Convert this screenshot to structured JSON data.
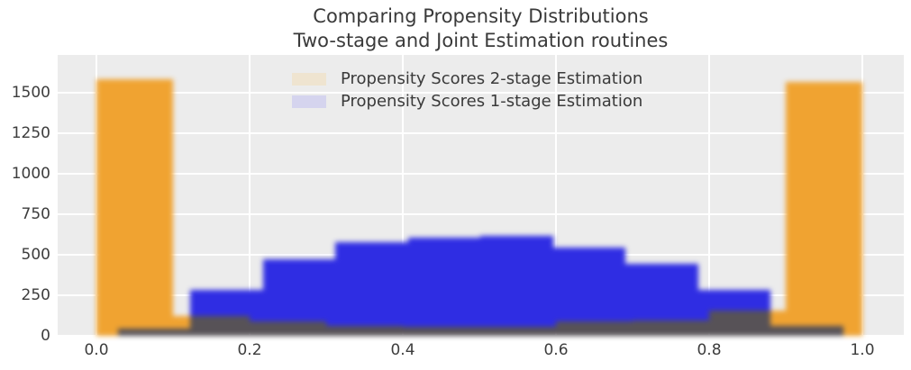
{
  "title": {
    "line1": "Comparing Propensity Distributions",
    "line2": "Two-stage and Joint Estimation routines"
  },
  "chart_data": {
    "type": "histogram",
    "title": "Comparing Propensity Distributions\nTwo-stage and Joint Estimation routines",
    "xlabel": "",
    "ylabel": "",
    "xlim": [
      -0.05,
      1.054
    ],
    "ylim": [
      0,
      1735
    ],
    "grid": true,
    "background_color": "#ececec",
    "grid_color": "#ffffff",
    "overlap_color": "#575257",
    "legend_position": "upper center",
    "x_ticks": [
      0.0,
      0.2,
      0.4,
      0.6,
      0.8,
      1.0
    ],
    "x_tick_labels": [
      "0.0",
      "0.2",
      "0.4",
      "0.6",
      "0.8",
      "1.0"
    ],
    "y_ticks": [
      0,
      250,
      500,
      750,
      1000,
      1250,
      1500
    ],
    "y_tick_labels": [
      "0",
      "250",
      "500",
      "750",
      "1000",
      "1250",
      "1500"
    ],
    "series": [
      {
        "name": "Propensity Scores 2-stage Estimation",
        "color": "#f0a331",
        "legend_swatch_color": "#efe4d0",
        "bin_edges": [
          0.0,
          0.1,
          0.2,
          0.3,
          0.4,
          0.5,
          0.6,
          0.7,
          0.8,
          0.9,
          1.0
        ],
        "counts": [
          1585,
          120,
          87,
          63,
          57,
          58,
          87,
          96,
          155,
          1565
        ]
      },
      {
        "name": "Propensity Scores 1-stage Estimation",
        "color": "#2f2de3",
        "legend_swatch_color": "#d5d4ee",
        "bin_edges": [
          0.028,
          0.1227,
          0.2174,
          0.3121,
          0.4068,
          0.5015,
          0.5962,
          0.6909,
          0.7856,
          0.8803,
          0.975
        ],
        "counts": [
          45,
          285,
          470,
          578,
          608,
          618,
          545,
          443,
          285,
          60
        ]
      }
    ]
  }
}
